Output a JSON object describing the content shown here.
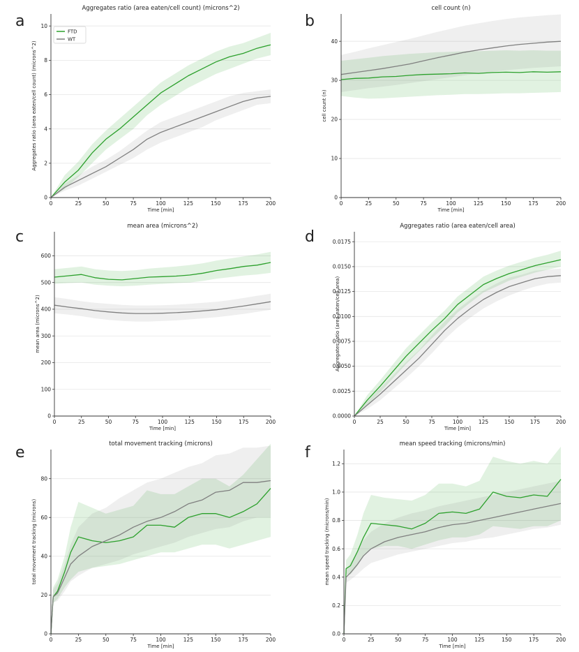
{
  "figure": {
    "legend": {
      "entries": [
        {
          "name": "FTD",
          "color": "#2ca02c"
        },
        {
          "name": "WT",
          "color": "#7f7f7f"
        }
      ],
      "placement": "top-left of panel a"
    }
  },
  "chart_data": [
    {
      "id": "a",
      "letter": "a",
      "type": "line",
      "title": "Aggregates ratio (area eaten/cell count) (microns^2)",
      "xlabel": "Time [min]",
      "ylabel": "Aggregates ratio (area eaten/cell count) (microns^2)",
      "xlim": [
        0,
        200
      ],
      "ylim": [
        0,
        10.7
      ],
      "xticks": [
        "0",
        "25",
        "50",
        "75",
        "100",
        "125",
        "150",
        "175",
        "200"
      ],
      "yticks": [
        "0",
        "2",
        "4",
        "6",
        "8",
        "10"
      ],
      "x": [
        0,
        12.5,
        25,
        37.5,
        50,
        62.5,
        75,
        87.5,
        100,
        112.5,
        125,
        137.5,
        150,
        162.5,
        175,
        187.5,
        200
      ],
      "series": [
        {
          "name": "FTD",
          "color": "#2ca02c",
          "values": [
            0,
            0.9,
            1.6,
            2.6,
            3.4,
            4.0,
            4.7,
            5.4,
            6.1,
            6.6,
            7.1,
            7.5,
            7.9,
            8.2,
            8.4,
            8.7,
            8.9
          ],
          "lower": [
            0,
            0.5,
            1.2,
            2.0,
            2.8,
            3.4,
            4.0,
            4.8,
            5.4,
            5.9,
            6.4,
            6.8,
            7.2,
            7.5,
            7.8,
            8.1,
            8.3
          ],
          "upper": [
            0,
            1.3,
            2.1,
            3.1,
            3.9,
            4.6,
            5.3,
            6.0,
            6.7,
            7.2,
            7.7,
            8.1,
            8.5,
            8.8,
            9.0,
            9.3,
            9.6
          ]
        },
        {
          "name": "WT",
          "color": "#7f7f7f",
          "values": [
            0,
            0.6,
            1.0,
            1.4,
            1.8,
            2.3,
            2.8,
            3.4,
            3.8,
            4.1,
            4.4,
            4.7,
            5.0,
            5.3,
            5.6,
            5.8,
            5.9
          ],
          "lower": [
            0,
            0.4,
            0.7,
            1.1,
            1.5,
            1.9,
            2.3,
            2.8,
            3.2,
            3.5,
            3.8,
            4.1,
            4.5,
            4.8,
            5.1,
            5.4,
            5.5
          ],
          "upper": [
            0,
            0.8,
            1.3,
            1.8,
            2.2,
            2.7,
            3.3,
            3.9,
            4.4,
            4.7,
            5.0,
            5.3,
            5.6,
            5.9,
            6.1,
            6.2,
            6.3
          ]
        }
      ]
    },
    {
      "id": "b",
      "letter": "b",
      "type": "line",
      "title": "cell count (n)",
      "xlabel": "Time [min]",
      "ylabel": "cell count (n)",
      "xlim": [
        0,
        200
      ],
      "ylim": [
        0,
        47
      ],
      "xticks": [
        "0",
        "25",
        "50",
        "75",
        "100",
        "125",
        "150",
        "175",
        "200"
      ],
      "yticks": [
        "0",
        "10",
        "20",
        "30",
        "40"
      ],
      "x": [
        0,
        12.5,
        25,
        37.5,
        50,
        62.5,
        75,
        87.5,
        100,
        112.5,
        125,
        137.5,
        150,
        162.5,
        175,
        187.5,
        200
      ],
      "series": [
        {
          "name": "FTD",
          "color": "#2ca02c",
          "values": [
            30.2,
            30.5,
            30.6,
            30.9,
            31.0,
            31.3,
            31.5,
            31.6,
            31.7,
            31.9,
            31.8,
            32.0,
            32.1,
            32.0,
            32.2,
            32.1,
            32.2
          ],
          "lower": [
            26.0,
            25.6,
            25.3,
            25.4,
            25.6,
            25.8,
            26.0,
            26.2,
            26.3,
            26.5,
            26.5,
            26.6,
            26.7,
            26.7,
            26.8,
            26.9,
            27.0
          ],
          "upper": [
            35.0,
            35.4,
            35.8,
            36.2,
            36.5,
            36.8,
            37.0,
            37.2,
            37.3,
            37.5,
            37.5,
            37.6,
            37.7,
            37.6,
            37.7,
            37.6,
            37.6
          ]
        },
        {
          "name": "WT",
          "color": "#7f7f7f",
          "values": [
            31.5,
            32.0,
            32.5,
            33.0,
            33.6,
            34.2,
            35.0,
            35.8,
            36.5,
            37.2,
            37.8,
            38.3,
            38.8,
            39.2,
            39.5,
            39.8,
            40.0
          ],
          "lower": [
            27.0,
            27.5,
            28.0,
            28.4,
            28.8,
            29.3,
            29.8,
            30.3,
            30.8,
            31.3,
            31.8,
            32.2,
            32.6,
            32.9,
            33.2,
            33.4,
            33.6
          ],
          "upper": [
            36.5,
            37.3,
            38.2,
            39.0,
            39.8,
            40.6,
            41.5,
            42.4,
            43.2,
            44.0,
            44.6,
            45.2,
            45.7,
            46.1,
            46.4,
            46.7,
            46.9
          ]
        }
      ]
    },
    {
      "id": "c",
      "letter": "c",
      "type": "line",
      "title": "mean area (microns^2)",
      "xlabel": "Time [min]",
      "ylabel": "mean area (microns^2)",
      "xlim": [
        0,
        200
      ],
      "ylim": [
        0,
        690
      ],
      "xticks": [
        "0",
        "25",
        "50",
        "75",
        "100",
        "125",
        "150",
        "175",
        "200"
      ],
      "yticks": [
        "0",
        "100",
        "200",
        "300",
        "400",
        "500",
        "600"
      ],
      "x": [
        0,
        12.5,
        25,
        37.5,
        50,
        62.5,
        75,
        87.5,
        100,
        112.5,
        125,
        137.5,
        150,
        162.5,
        175,
        187.5,
        200
      ],
      "series": [
        {
          "name": "FTD",
          "color": "#2ca02c",
          "values": [
            520,
            525,
            530,
            518,
            512,
            510,
            515,
            520,
            522,
            524,
            528,
            535,
            545,
            552,
            560,
            565,
            575
          ],
          "lower": [
            495,
            498,
            500,
            492,
            488,
            486,
            488,
            492,
            495,
            498,
            500,
            506,
            514,
            520,
            526,
            530,
            536
          ],
          "upper": [
            550,
            555,
            560,
            550,
            545,
            543,
            546,
            552,
            556,
            560,
            565,
            572,
            582,
            590,
            598,
            605,
            615
          ]
        },
        {
          "name": "WT",
          "color": "#7f7f7f",
          "values": [
            415,
            408,
            402,
            395,
            390,
            386,
            384,
            384,
            385,
            387,
            390,
            394,
            398,
            405,
            412,
            420,
            428
          ],
          "lower": [
            385,
            380,
            374,
            366,
            360,
            356,
            354,
            354,
            356,
            358,
            362,
            366,
            370,
            376,
            382,
            390,
            398
          ],
          "upper": [
            445,
            438,
            430,
            424,
            420,
            416,
            414,
            414,
            415,
            417,
            420,
            424,
            428,
            434,
            442,
            450,
            458
          ]
        }
      ]
    },
    {
      "id": "d",
      "letter": "d",
      "type": "line",
      "title": "Aggregates ratio (area eaten/cell area)",
      "xlabel": "Time [min]",
      "ylabel": "Aggregates ratio (area eaten/cell area)",
      "xlim": [
        0,
        200
      ],
      "ylim": [
        0,
        0.0185
      ],
      "xticks": [
        "0",
        "25",
        "50",
        "75",
        "100",
        "125",
        "150",
        "175",
        "200"
      ],
      "yticks": [
        "0.0000",
        "0.0025",
        "0.0050",
        "0.0075",
        "0.0100",
        "0.0125",
        "0.0150",
        "0.0175"
      ],
      "x": [
        0,
        12.5,
        25,
        37.5,
        50,
        62.5,
        75,
        87.5,
        100,
        112.5,
        125,
        137.5,
        150,
        162.5,
        175,
        187.5,
        200
      ],
      "series": [
        {
          "name": "FTD",
          "color": "#2ca02c",
          "values": [
            0,
            0.0016,
            0.003,
            0.0045,
            0.006,
            0.0073,
            0.0086,
            0.0098,
            0.0112,
            0.0122,
            0.0132,
            0.0138,
            0.0143,
            0.0147,
            0.0151,
            0.0154,
            0.0157
          ],
          "lower": [
            0,
            0.0011,
            0.0024,
            0.0038,
            0.0052,
            0.0065,
            0.0078,
            0.009,
            0.0104,
            0.0114,
            0.0124,
            0.013,
            0.0136,
            0.014,
            0.0144,
            0.0147,
            0.015
          ],
          "upper": [
            0,
            0.0021,
            0.0036,
            0.0052,
            0.0068,
            0.0081,
            0.0094,
            0.0106,
            0.012,
            0.013,
            0.014,
            0.0146,
            0.0151,
            0.0155,
            0.0159,
            0.0162,
            0.0166
          ]
        },
        {
          "name": "WT",
          "color": "#7f7f7f",
          "values": [
            0,
            0.0011,
            0.0022,
            0.0034,
            0.0046,
            0.0058,
            0.0072,
            0.0086,
            0.0098,
            0.0108,
            0.0117,
            0.0124,
            0.013,
            0.0134,
            0.0138,
            0.014,
            0.0141
          ],
          "lower": [
            0,
            0.0007,
            0.0016,
            0.0027,
            0.0038,
            0.005,
            0.0063,
            0.0077,
            0.0089,
            0.0099,
            0.0108,
            0.0115,
            0.0121,
            0.0126,
            0.013,
            0.0133,
            0.0134
          ],
          "upper": [
            0,
            0.0015,
            0.0028,
            0.0041,
            0.0054,
            0.0066,
            0.0081,
            0.0095,
            0.0107,
            0.0117,
            0.0126,
            0.0133,
            0.0139,
            0.0142,
            0.0146,
            0.0147,
            0.0148
          ]
        }
      ]
    },
    {
      "id": "e",
      "letter": "e",
      "type": "line",
      "title": "total movement tracking (microns)",
      "xlabel": "Time [min]",
      "ylabel": "total movement tracking (microns)",
      "xlim": [
        0,
        200
      ],
      "ylim": [
        0,
        95
      ],
      "xticks": [
        "0",
        "25",
        "50",
        "75",
        "100",
        "125",
        "150",
        "175",
        "200"
      ],
      "yticks": [
        "0",
        "20",
        "40",
        "60",
        "80"
      ],
      "x": [
        0,
        2,
        6,
        12.5,
        18,
        25,
        37.5,
        50,
        62.5,
        75,
        87.5,
        100,
        112.5,
        125,
        137.5,
        150,
        162.5,
        175,
        187.5,
        200
      ],
      "series": [
        {
          "name": "FTD",
          "color": "#2ca02c",
          "values": [
            0,
            19,
            22,
            32,
            42,
            50,
            48,
            47,
            48,
            50,
            56,
            56,
            55,
            60,
            62,
            62,
            60,
            63,
            67,
            75
          ],
          "lower": [
            0,
            16,
            18,
            24,
            28,
            32,
            34,
            35,
            36,
            38,
            40,
            42,
            42,
            44,
            46,
            46,
            44,
            46,
            48,
            50
          ],
          "upper": [
            0,
            24,
            28,
            40,
            55,
            68,
            65,
            62,
            64,
            66,
            74,
            72,
            72,
            76,
            80,
            80,
            76,
            82,
            90,
            98
          ]
        },
        {
          "name": "WT",
          "color": "#7f7f7f",
          "values": [
            0,
            19,
            21,
            29,
            36,
            40,
            45,
            48,
            51,
            55,
            58,
            60,
            63,
            67,
            69,
            73,
            74,
            78,
            78,
            79
          ],
          "lower": [
            0,
            16,
            17,
            22,
            27,
            30,
            34,
            36,
            38,
            41,
            43,
            45,
            47,
            50,
            52,
            54,
            55,
            58,
            60,
            60
          ],
          "upper": [
            0,
            23,
            26,
            36,
            46,
            55,
            62,
            65,
            70,
            74,
            78,
            80,
            83,
            86,
            88,
            92,
            93,
            96,
            96,
            97
          ]
        }
      ]
    },
    {
      "id": "f",
      "letter": "f",
      "type": "line",
      "title": "mean speed tracking (microns/min)",
      "xlabel": "Time [min]",
      "ylabel": "mean speed tracking (microns/min)",
      "xlim": [
        0,
        200
      ],
      "ylim": [
        0,
        1.3
      ],
      "xticks": [
        "0",
        "25",
        "50",
        "75",
        "100",
        "125",
        "150",
        "175",
        "200"
      ],
      "yticks": [
        "0.0",
        "0.2",
        "0.4",
        "0.6",
        "0.8",
        "1.0",
        "1.2"
      ],
      "x": [
        0,
        2,
        6,
        12.5,
        18,
        25,
        37.5,
        50,
        62.5,
        75,
        87.5,
        100,
        112.5,
        125,
        137.5,
        150,
        162.5,
        175,
        187.5,
        200
      ],
      "series": [
        {
          "name": "FTD",
          "color": "#2ca02c",
          "values": [
            0,
            0.46,
            0.48,
            0.58,
            0.68,
            0.78,
            0.77,
            0.76,
            0.74,
            0.78,
            0.85,
            0.86,
            0.85,
            0.88,
            1.0,
            0.97,
            0.96,
            0.98,
            0.97,
            1.09
          ],
          "lower": [
            0,
            0.42,
            0.42,
            0.48,
            0.55,
            0.6,
            0.62,
            0.62,
            0.6,
            0.63,
            0.66,
            0.68,
            0.68,
            0.7,
            0.76,
            0.75,
            0.74,
            0.76,
            0.76,
            0.8
          ],
          "upper": [
            0,
            0.52,
            0.56,
            0.7,
            0.85,
            0.98,
            0.96,
            0.95,
            0.94,
            0.98,
            1.06,
            1.06,
            1.04,
            1.08,
            1.25,
            1.22,
            1.2,
            1.22,
            1.2,
            1.32
          ]
        },
        {
          "name": "WT",
          "color": "#7f7f7f",
          "values": [
            0,
            0.4,
            0.43,
            0.49,
            0.55,
            0.6,
            0.65,
            0.68,
            0.7,
            0.72,
            0.75,
            0.77,
            0.78,
            0.8,
            0.82,
            0.84,
            0.86,
            0.88,
            0.9,
            0.92
          ],
          "lower": [
            0,
            0.36,
            0.38,
            0.42,
            0.46,
            0.5,
            0.53,
            0.56,
            0.58,
            0.6,
            0.62,
            0.64,
            0.65,
            0.67,
            0.68,
            0.7,
            0.72,
            0.74,
            0.75,
            0.77
          ],
          "upper": [
            0,
            0.45,
            0.5,
            0.58,
            0.66,
            0.72,
            0.78,
            0.82,
            0.85,
            0.87,
            0.9,
            0.92,
            0.94,
            0.96,
            0.98,
            1.0,
            1.02,
            1.04,
            1.06,
            1.08
          ]
        }
      ]
    }
  ]
}
